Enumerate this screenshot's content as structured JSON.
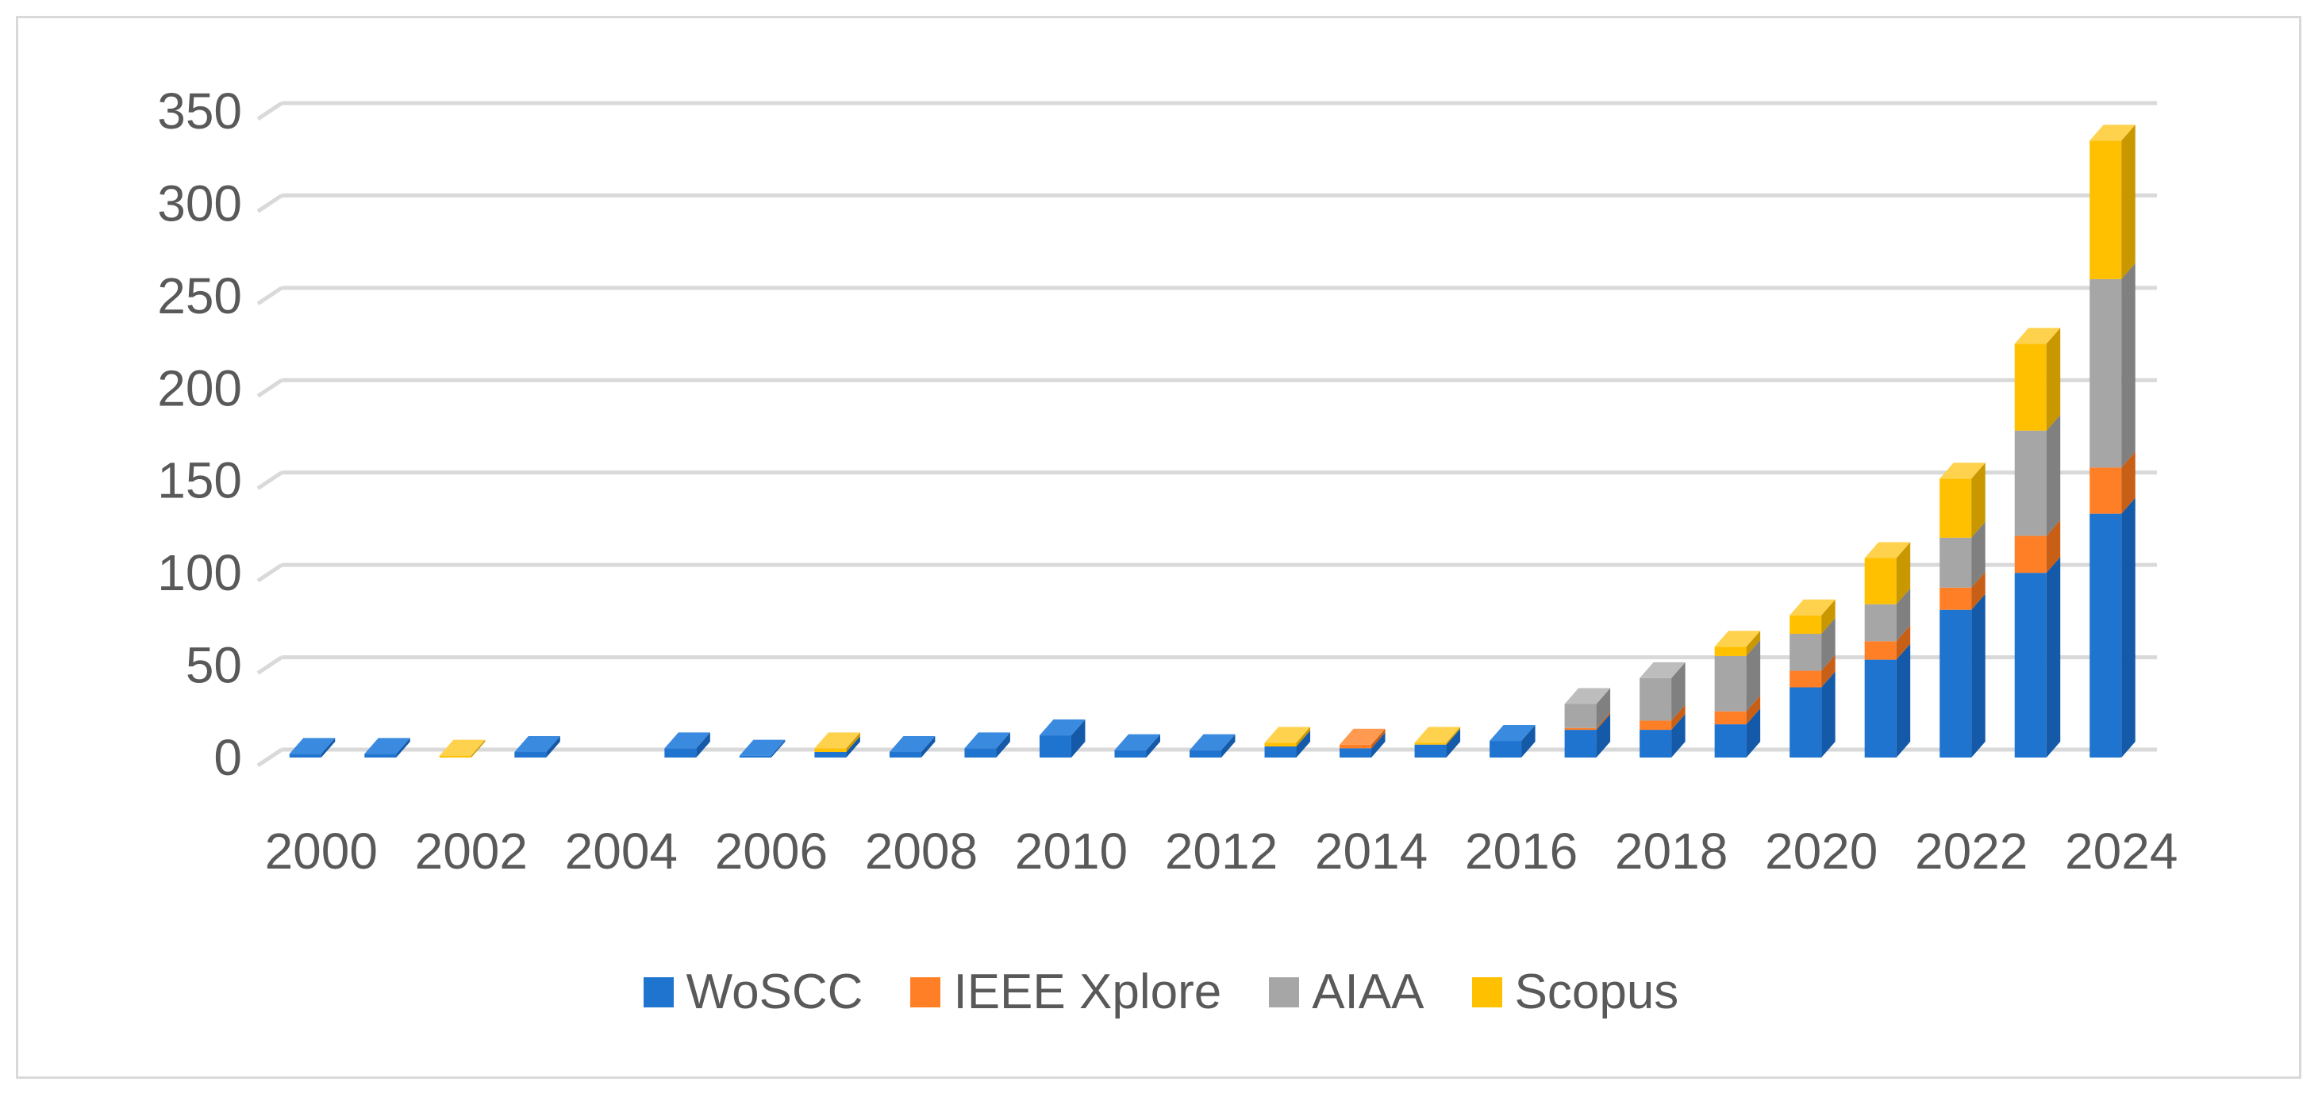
{
  "chart_data": {
    "type": "bar",
    "stacked": true,
    "three_d": true,
    "title": "",
    "xlabel": "",
    "ylabel": "",
    "ylim": [
      0,
      350
    ],
    "yticks": [
      0,
      50,
      100,
      150,
      200,
      250,
      300,
      350
    ],
    "grid": true,
    "legend_position": "bottom",
    "categories": [
      "2000",
      "2001",
      "2002",
      "2003",
      "2004",
      "2005",
      "2006",
      "2007",
      "2008",
      "2009",
      "2010",
      "2011",
      "2012",
      "2013",
      "2014",
      "2015",
      "2016",
      "2017",
      "2018",
      "2019",
      "2020",
      "2021",
      "2022",
      "2023",
      "2024"
    ],
    "x_tick_labels": [
      "2000",
      "2002",
      "2004",
      "2006",
      "2008",
      "2010",
      "2012",
      "2014",
      "2016",
      "2018",
      "2020",
      "2022",
      "2024"
    ],
    "series": [
      {
        "name": "WoSCC",
        "color": "#1f74d0",
        "side_color": "#145aa8",
        "top_color": "#3a8ae0",
        "values": [
          2,
          2,
          0,
          3,
          0,
          5,
          1,
          3,
          3,
          5,
          12,
          4,
          4,
          6,
          5,
          7,
          9,
          15,
          15,
          18,
          38,
          53,
          80,
          100,
          132
        ]
      },
      {
        "name": "IEEE Xplore",
        "color": "#ff7f27",
        "side_color": "#c85f17",
        "top_color": "#ff9a50",
        "values": [
          0,
          0,
          0,
          0,
          0,
          0,
          0,
          0,
          0,
          0,
          0,
          0,
          0,
          0,
          2,
          0,
          0,
          1,
          5,
          7,
          9,
          10,
          12,
          20,
          25
        ]
      },
      {
        "name": "AIAA",
        "color": "#a6a6a6",
        "side_color": "#808080",
        "top_color": "#bdbdbd",
        "values": [
          0,
          0,
          0,
          0,
          0,
          0,
          0,
          0,
          0,
          0,
          0,
          0,
          0,
          0,
          0,
          0,
          0,
          13,
          23,
          30,
          20,
          20,
          27,
          57,
          102
        ]
      },
      {
        "name": "Scopus",
        "color": "#ffc000",
        "side_color": "#c99700",
        "top_color": "#ffd24d",
        "values": [
          0,
          0,
          1,
          0,
          0,
          0,
          0,
          2,
          0,
          0,
          0,
          0,
          0,
          2,
          0,
          1,
          0,
          0,
          0,
          5,
          10,
          25,
          32,
          47,
          75
        ]
      }
    ]
  }
}
